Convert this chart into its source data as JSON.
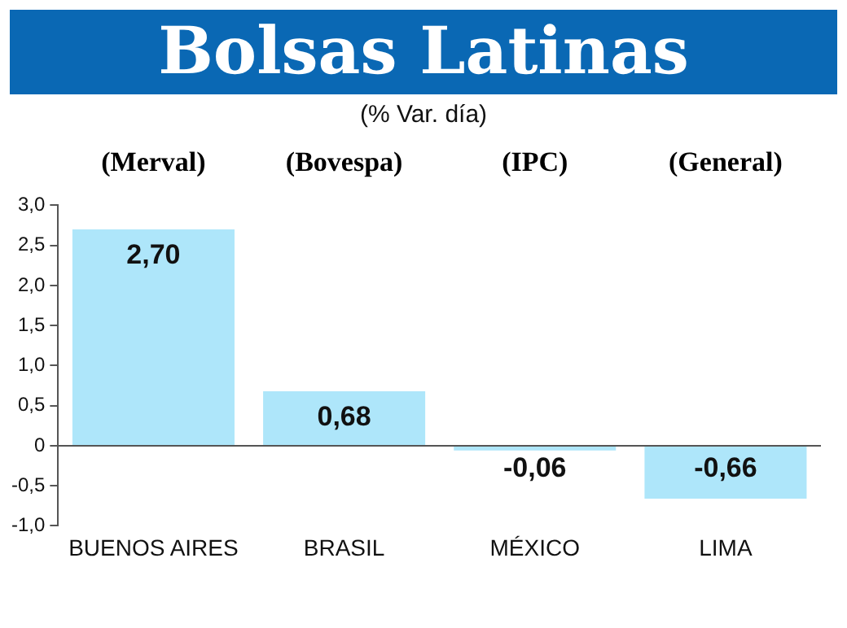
{
  "chart_data": {
    "type": "bar",
    "title": "Bolsas Latinas",
    "subtitle": "(% Var. día)",
    "categories": [
      "BUENOS AIRES",
      "BRASIL",
      "MÉXICO",
      "LIMA"
    ],
    "values": [
      2.7,
      0.68,
      -0.06,
      -0.66
    ],
    "value_labels": [
      "2,70",
      "0,68",
      "-0,06",
      "-0,66"
    ],
    "color": "#aee6fa",
    "ylim": [
      -1,
      3
    ],
    "yticks": [
      {
        "value": -1,
        "label": "-1,0"
      },
      {
        "value": -0.5,
        "label": "-0,5"
      },
      {
        "value": 0,
        "label": "0"
      },
      {
        "value": 0.5,
        "label": "0,5"
      },
      {
        "value": 1,
        "label": "1,0"
      },
      {
        "value": 1.5,
        "label": "1,5"
      },
      {
        "value": 2,
        "label": "2,0"
      },
      {
        "value": 2.5,
        "label": "2,5"
      },
      {
        "value": 3,
        "label": "3,0"
      }
    ],
    "annotations": [
      "(Merval)",
      "(Bovespa)",
      "(IPC)",
      "(General)"
    ],
    "legend": false
  }
}
